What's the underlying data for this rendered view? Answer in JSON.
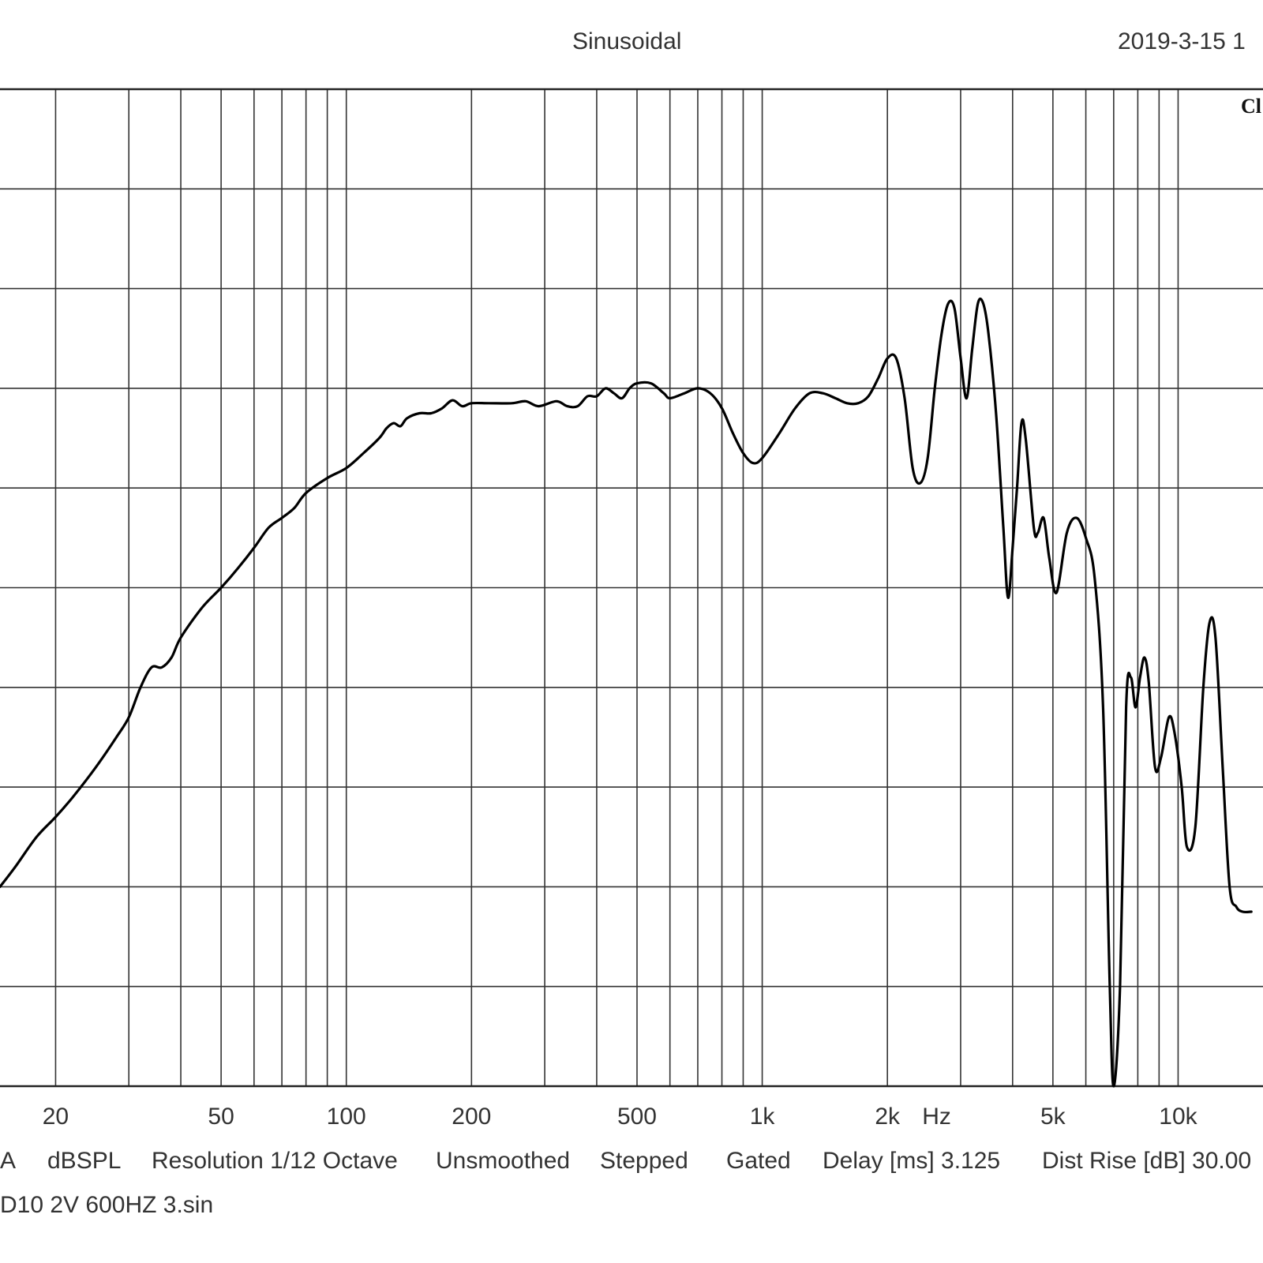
{
  "header": {
    "title": "Sinusoidal",
    "timestamp": "2019-3-15 1",
    "corner_mark": "Cl"
  },
  "footer": {
    "settings": [
      "A",
      "dBSPL",
      "Resolution 1/12 Octave",
      "Unsmoothed",
      "Stepped",
      "Gated",
      "Delay [ms] 3.125",
      "Dist Rise [dB] 30.00"
    ],
    "filename": "D10 2V 600HZ 3.sin"
  },
  "chart_data": {
    "type": "line",
    "title": "Sinusoidal",
    "xlabel": "Hz",
    "ylabel": "",
    "x_scale": "log",
    "xlim": [
      14.7,
      16000
    ],
    "ylim": [
      0,
      10
    ],
    "grid": true,
    "x_ticks": [
      {
        "value": 20,
        "label": "20"
      },
      {
        "value": 50,
        "label": "50"
      },
      {
        "value": 100,
        "label": "100"
      },
      {
        "value": 200,
        "label": "200"
      },
      {
        "value": 500,
        "label": "500"
      },
      {
        "value": 1000,
        "label": "1k"
      },
      {
        "value": 2000,
        "label": "2k"
      },
      {
        "value": 5000,
        "label": "5k"
      },
      {
        "value": 10000,
        "label": "10k"
      }
    ],
    "x_gridlines": [
      20,
      30,
      40,
      50,
      60,
      70,
      80,
      90,
      100,
      200,
      300,
      400,
      500,
      600,
      700,
      800,
      900,
      1000,
      2000,
      3000,
      4000,
      5000,
      6000,
      7000,
      8000,
      9000,
      10000
    ],
    "y_gridlines": [
      1,
      2,
      3,
      4,
      5,
      6,
      7,
      8,
      9
    ],
    "series": [
      {
        "color": "#000000",
        "points": [
          [
            14.7,
            2.0
          ],
          [
            16,
            2.2
          ],
          [
            18,
            2.5
          ],
          [
            20,
            2.7
          ],
          [
            22,
            2.9
          ],
          [
            25,
            3.2
          ],
          [
            28,
            3.5
          ],
          [
            30,
            3.7
          ],
          [
            32,
            4.0
          ],
          [
            34,
            4.2
          ],
          [
            36,
            4.2
          ],
          [
            38,
            4.3
          ],
          [
            40,
            4.5
          ],
          [
            45,
            4.8
          ],
          [
            50,
            5.0
          ],
          [
            55,
            5.2
          ],
          [
            60,
            5.4
          ],
          [
            65,
            5.6
          ],
          [
            70,
            5.7
          ],
          [
            75,
            5.8
          ],
          [
            80,
            5.95
          ],
          [
            90,
            6.1
          ],
          [
            100,
            6.2
          ],
          [
            110,
            6.35
          ],
          [
            120,
            6.5
          ],
          [
            125,
            6.6
          ],
          [
            130,
            6.65
          ],
          [
            135,
            6.62
          ],
          [
            140,
            6.7
          ],
          [
            150,
            6.75
          ],
          [
            160,
            6.75
          ],
          [
            170,
            6.8
          ],
          [
            180,
            6.88
          ],
          [
            190,
            6.82
          ],
          [
            200,
            6.85
          ],
          [
            220,
            6.85
          ],
          [
            250,
            6.85
          ],
          [
            270,
            6.87
          ],
          [
            290,
            6.82
          ],
          [
            320,
            6.87
          ],
          [
            340,
            6.82
          ],
          [
            360,
            6.82
          ],
          [
            380,
            6.92
          ],
          [
            400,
            6.92
          ],
          [
            420,
            7.0
          ],
          [
            440,
            6.95
          ],
          [
            460,
            6.9
          ],
          [
            480,
            7.0
          ],
          [
            500,
            7.05
          ],
          [
            540,
            7.05
          ],
          [
            580,
            6.95
          ],
          [
            600,
            6.9
          ],
          [
            650,
            6.95
          ],
          [
            700,
            7.0
          ],
          [
            750,
            6.95
          ],
          [
            800,
            6.8
          ],
          [
            850,
            6.55
          ],
          [
            900,
            6.35
          ],
          [
            950,
            6.25
          ],
          [
            1000,
            6.3
          ],
          [
            1100,
            6.55
          ],
          [
            1200,
            6.8
          ],
          [
            1300,
            6.95
          ],
          [
            1400,
            6.95
          ],
          [
            1500,
            6.9
          ],
          [
            1600,
            6.85
          ],
          [
            1700,
            6.85
          ],
          [
            1800,
            6.92
          ],
          [
            1900,
            7.1
          ],
          [
            2000,
            7.3
          ],
          [
            2100,
            7.3
          ],
          [
            2200,
            6.9
          ],
          [
            2300,
            6.2
          ],
          [
            2400,
            6.05
          ],
          [
            2500,
            6.3
          ],
          [
            2600,
            7.0
          ],
          [
            2700,
            7.55
          ],
          [
            2800,
            7.85
          ],
          [
            2900,
            7.8
          ],
          [
            3000,
            7.3
          ],
          [
            3100,
            6.9
          ],
          [
            3200,
            7.4
          ],
          [
            3300,
            7.85
          ],
          [
            3400,
            7.85
          ],
          [
            3500,
            7.55
          ],
          [
            3650,
            6.75
          ],
          [
            3800,
            5.6
          ],
          [
            3900,
            4.9
          ],
          [
            4000,
            5.4
          ],
          [
            4100,
            6.0
          ],
          [
            4200,
            6.65
          ],
          [
            4300,
            6.5
          ],
          [
            4500,
            5.6
          ],
          [
            4600,
            5.55
          ],
          [
            4750,
            5.7
          ],
          [
            4900,
            5.3
          ],
          [
            5100,
            4.95
          ],
          [
            5400,
            5.55
          ],
          [
            5700,
            5.7
          ],
          [
            6000,
            5.5
          ],
          [
            6300,
            5.1
          ],
          [
            6600,
            3.8
          ],
          [
            6850,
            1.0
          ],
          [
            7000,
            0.0
          ],
          [
            7250,
            1.0
          ],
          [
            7500,
            3.8
          ],
          [
            7700,
            4.1
          ],
          [
            7900,
            3.8
          ],
          [
            8100,
            4.1
          ],
          [
            8300,
            4.3
          ],
          [
            8500,
            4.05
          ],
          [
            8800,
            3.2
          ],
          [
            9100,
            3.3
          ],
          [
            9500,
            3.7
          ],
          [
            9800,
            3.55
          ],
          [
            10200,
            3.0
          ],
          [
            10500,
            2.4
          ],
          [
            11000,
            2.6
          ],
          [
            11500,
            4.0
          ],
          [
            11900,
            4.65
          ],
          [
            12300,
            4.5
          ],
          [
            12800,
            3.2
          ],
          [
            13300,
            2.0
          ],
          [
            13800,
            1.8
          ],
          [
            14300,
            1.75
          ],
          [
            15000,
            1.75
          ]
        ]
      }
    ]
  }
}
